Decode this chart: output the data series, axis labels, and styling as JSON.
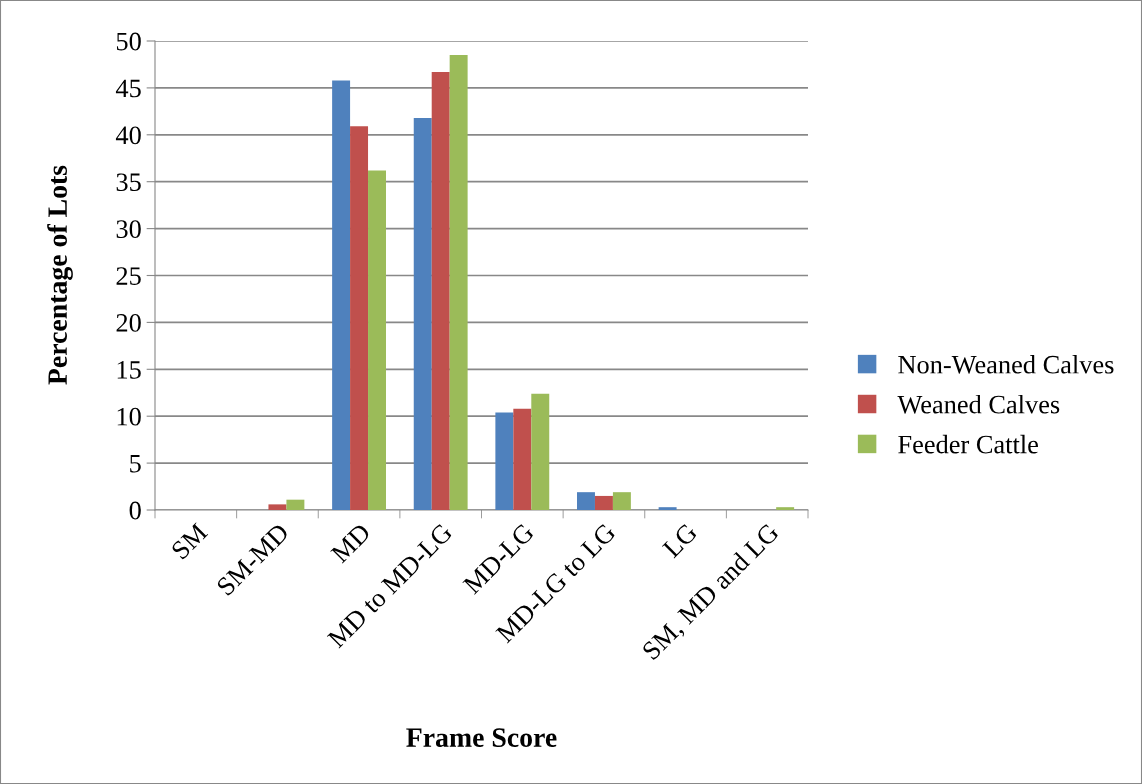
{
  "chart_data": {
    "type": "bar",
    "xlabel": "Frame Score",
    "ylabel": "Percentage of Lots",
    "categories": [
      "SM",
      "SM-MD",
      "MD",
      "MD to MD-LG",
      "MD-LG",
      "MD-LG to LG",
      "LG",
      "SM, MD and LG"
    ],
    "series": [
      {
        "name": "Non-Weaned Calves",
        "color": "#4f81bd",
        "values": [
          0,
          0,
          45.8,
          41.8,
          10.4,
          1.9,
          0.3,
          0
        ]
      },
      {
        "name": "Weaned Calves",
        "color": "#c0504d",
        "values": [
          0,
          0.6,
          40.9,
          46.7,
          10.8,
          1.5,
          0,
          0
        ]
      },
      {
        "name": "Feeder Cattle",
        "color": "#9bbb59",
        "values": [
          0,
          1.1,
          36.2,
          48.5,
          12.4,
          1.9,
          0,
          0.3
        ]
      }
    ],
    "ylim": [
      0,
      50
    ],
    "yticks": [
      0,
      5,
      10,
      15,
      20,
      25,
      30,
      35,
      40,
      45,
      50
    ],
    "grid": "y",
    "legend": "right"
  }
}
